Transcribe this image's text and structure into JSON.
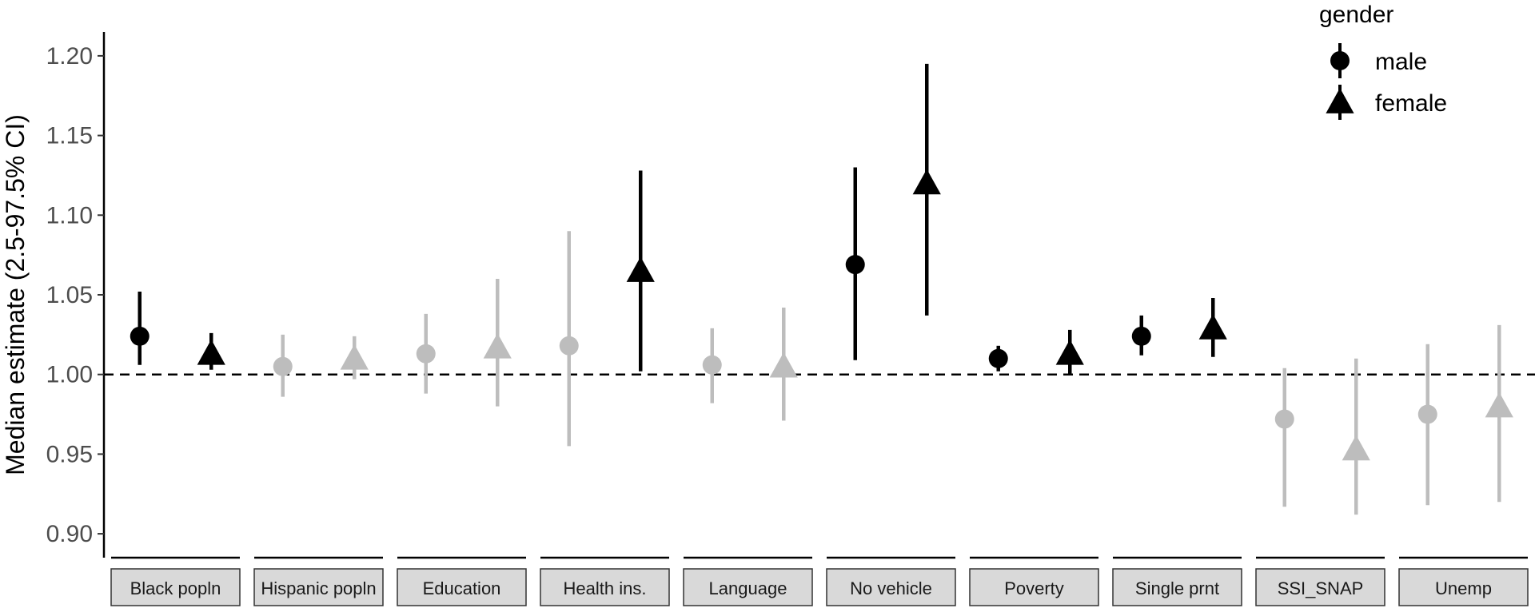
{
  "chart_data": {
    "type": "scatter",
    "ylabel": "Median estimate (2.5-97.5% CI)",
    "ylim": [
      0.885,
      1.215
    ],
    "yticks": [
      0.9,
      0.95,
      1.0,
      1.05,
      1.1,
      1.15,
      1.2
    ],
    "ytick_labels": [
      "0.90",
      "0.95",
      "1.00",
      "1.05",
      "1.10",
      "1.15",
      "1.20"
    ],
    "reference_line": 1.0,
    "legend": {
      "title": "gender",
      "position": "top-right",
      "entries": [
        {
          "label": "male",
          "shape": "circle"
        },
        {
          "label": "female",
          "shape": "triangle"
        }
      ]
    },
    "colors": {
      "significant": "#000000",
      "not_significant": "#bdbdbd"
    },
    "panels": [
      {
        "label": "Black popln",
        "points": [
          {
            "gender": "male",
            "estimate": 1.024,
            "lower": 1.006,
            "upper": 1.052,
            "significant": true
          },
          {
            "gender": "female",
            "estimate": 1.013,
            "lower": 1.003,
            "upper": 1.026,
            "significant": true
          }
        ]
      },
      {
        "label": "Hispanic popln",
        "points": [
          {
            "gender": "male",
            "estimate": 1.005,
            "lower": 0.986,
            "upper": 1.025,
            "significant": false
          },
          {
            "gender": "female",
            "estimate": 1.01,
            "lower": 0.997,
            "upper": 1.024,
            "significant": false
          }
        ]
      },
      {
        "label": "Education",
        "points": [
          {
            "gender": "male",
            "estimate": 1.013,
            "lower": 0.988,
            "upper": 1.038,
            "significant": false
          },
          {
            "gender": "female",
            "estimate": 1.017,
            "lower": 0.98,
            "upper": 1.06,
            "significant": false
          }
        ]
      },
      {
        "label": "Health ins.",
        "points": [
          {
            "gender": "male",
            "estimate": 1.018,
            "lower": 0.955,
            "upper": 1.09,
            "significant": false
          },
          {
            "gender": "female",
            "estimate": 1.065,
            "lower": 1.002,
            "upper": 1.128,
            "significant": true
          }
        ]
      },
      {
        "label": "Language",
        "points": [
          {
            "gender": "male",
            "estimate": 1.006,
            "lower": 0.982,
            "upper": 1.029,
            "significant": false
          },
          {
            "gender": "female",
            "estimate": 1.005,
            "lower": 0.971,
            "upper": 1.042,
            "significant": false
          }
        ]
      },
      {
        "label": "No vehicle",
        "points": [
          {
            "gender": "male",
            "estimate": 1.069,
            "lower": 1.009,
            "upper": 1.13,
            "significant": true
          },
          {
            "gender": "female",
            "estimate": 1.12,
            "lower": 1.037,
            "upper": 1.195,
            "significant": true
          }
        ]
      },
      {
        "label": "Poverty",
        "points": [
          {
            "gender": "male",
            "estimate": 1.01,
            "lower": 1.002,
            "upper": 1.018,
            "significant": true
          },
          {
            "gender": "female",
            "estimate": 1.013,
            "lower": 1.0,
            "upper": 1.028,
            "significant": true
          }
        ]
      },
      {
        "label": "Single prnt",
        "points": [
          {
            "gender": "male",
            "estimate": 1.024,
            "lower": 1.012,
            "upper": 1.037,
            "significant": true
          },
          {
            "gender": "female",
            "estimate": 1.029,
            "lower": 1.011,
            "upper": 1.048,
            "significant": true
          }
        ]
      },
      {
        "label": "SSI_SNAP",
        "points": [
          {
            "gender": "male",
            "estimate": 0.972,
            "lower": 0.917,
            "upper": 1.004,
            "significant": false
          },
          {
            "gender": "female",
            "estimate": 0.953,
            "lower": 0.912,
            "upper": 1.01,
            "significant": false
          }
        ]
      },
      {
        "label": "Unemp",
        "points": [
          {
            "gender": "male",
            "estimate": 0.975,
            "lower": 0.918,
            "upper": 1.019,
            "significant": false
          },
          {
            "gender": "female",
            "estimate": 0.98,
            "lower": 0.92,
            "upper": 1.031,
            "significant": false
          }
        ]
      }
    ]
  }
}
